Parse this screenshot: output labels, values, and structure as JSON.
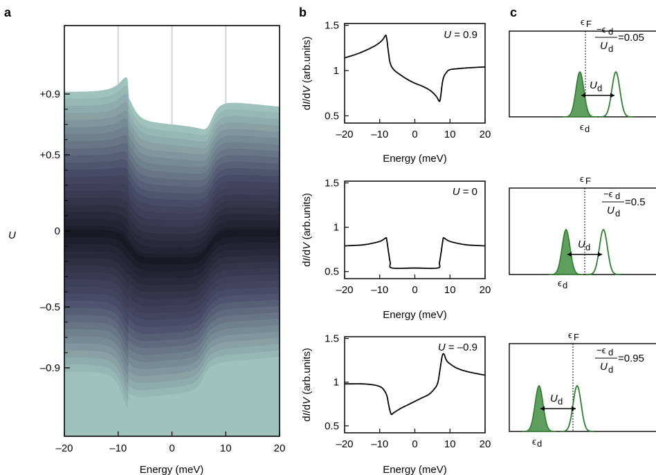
{
  "panel_labels": {
    "a": "a",
    "b": "b",
    "c": "c"
  },
  "chart_data": [
    {
      "id": "a",
      "type": "area",
      "xlabel": "Energy (meV)",
      "ylabel": "U",
      "xlim": [
        -20,
        20
      ],
      "xticks": [
        "–20",
        "–10",
        "0",
        "10",
        "20"
      ],
      "xtick_values": [
        -20,
        -10,
        0,
        10,
        20
      ],
      "yticks": [
        "+0.9",
        "+0.5",
        "0",
        "–0.5",
        "–0.9"
      ],
      "ytick_values": [
        0.9,
        0.5,
        0,
        -0.5,
        -0.9
      ],
      "ylim": [
        -1.35,
        1.35
      ],
      "vertical_gridlines": [
        -10,
        0,
        10
      ],
      "colormap": {
        "low": "#06060b",
        "mid": "#4a4d6a",
        "high": "#9fc2bd"
      },
      "description_of_series": "stacked dI/dV traces for U from -0.9 to 0.9"
    },
    {
      "id": "b1",
      "type": "line",
      "annotation": "U = 0.9",
      "ann_var": "U",
      "ann_val": " = 0.9",
      "xlabel": "Energy (meV)",
      "ylabel_italic_1": "I",
      "ylabel_italic_2": "V",
      "ylabel_d1": "d",
      "ylabel_slash": "/d",
      "ylabel_units": " (arb.units)",
      "xlim": [
        -20,
        20
      ],
      "ylim": [
        0.42,
        1.52
      ],
      "xticks": [
        "–20",
        "–10",
        "0",
        "10",
        "20"
      ],
      "yticks": [
        "0.5",
        "1",
        "1.5"
      ],
      "ytick_values": [
        0.5,
        1,
        1.5
      ],
      "x": [
        -20,
        -16,
        -12,
        -10,
        -9,
        -8.3,
        -8,
        -7.5,
        -7,
        -6,
        -4,
        -2,
        0,
        2,
        4,
        5,
        6,
        6.5,
        7,
        7.3,
        8,
        9,
        10,
        12,
        15,
        20
      ],
      "y": [
        1.14,
        1.19,
        1.26,
        1.31,
        1.35,
        1.39,
        1.35,
        1.2,
        1.08,
        1.01,
        0.95,
        0.9,
        0.86,
        0.83,
        0.79,
        0.76,
        0.72,
        0.69,
        0.66,
        0.7,
        0.9,
        0.98,
        1.01,
        1.02,
        1.03,
        1.04
      ]
    },
    {
      "id": "b2",
      "type": "line",
      "annotation": "U = 0",
      "ann_var": "U",
      "ann_val": " = 0",
      "xlabel": "Energy (meV)",
      "xlim": [
        -20,
        20
      ],
      "ylim": [
        0.42,
        1.52
      ],
      "xticks": [
        "–20",
        "–10",
        "0",
        "10",
        "20"
      ],
      "yticks": [
        "0.5",
        "1",
        "1.5"
      ],
      "ytick_values": [
        0.5,
        1,
        1.5
      ],
      "x": [
        -20,
        -15,
        -12,
        -10,
        -9,
        -8.2,
        -8,
        -7.5,
        -7,
        -6.5,
        0,
        6.5,
        7,
        7.5,
        8,
        8.2,
        9,
        10,
        12,
        15,
        20
      ],
      "y": [
        0.79,
        0.8,
        0.82,
        0.84,
        0.86,
        0.88,
        0.86,
        0.72,
        0.6,
        0.54,
        0.54,
        0.54,
        0.6,
        0.72,
        0.86,
        0.88,
        0.86,
        0.84,
        0.82,
        0.8,
        0.79
      ]
    },
    {
      "id": "b3",
      "type": "line",
      "annotation": "U = –0.9",
      "ann_var": "U",
      "ann_val": " = –0.9",
      "xlabel": "Energy (meV)",
      "xlim": [
        -20,
        20
      ],
      "ylim": [
        0.42,
        1.52
      ],
      "xticks": [
        "–20",
        "–10",
        "0",
        "10",
        "20"
      ],
      "yticks": [
        "0.5",
        "1",
        "1.5"
      ],
      "ytick_values": [
        0.5,
        1,
        1.5
      ],
      "x": [
        -20,
        -15,
        -12,
        -10,
        -9,
        -8,
        -7.5,
        -7,
        -6.6,
        -6,
        -4,
        -2,
        0,
        2,
        4,
        5.5,
        6.5,
        7.2,
        7.8,
        8.3,
        9,
        10,
        12,
        15,
        20
      ],
      "y": [
        0.98,
        0.98,
        0.97,
        0.95,
        0.92,
        0.85,
        0.75,
        0.66,
        0.63,
        0.65,
        0.7,
        0.74,
        0.78,
        0.82,
        0.86,
        0.92,
        0.99,
        1.15,
        1.3,
        1.32,
        1.25,
        1.21,
        1.16,
        1.12,
        1.08
      ]
    }
  ],
  "panel_c": [
    {
      "eF": "ϵ",
      "eF_sub": "F",
      "ratio_num": "−ϵ",
      "ratio_num_sub": "d",
      "ratio_den": "U",
      "ratio_den_sub": "d",
      "ratio_val": "=0.05",
      "Ud": "U",
      "Ud_sub": "d",
      "ed": "ϵ",
      "ed_sub": "d"
    },
    {
      "eF": "ϵ",
      "eF_sub": "F",
      "ratio_num": "−ϵ",
      "ratio_num_sub": "d",
      "ratio_den": "U",
      "ratio_den_sub": "d",
      "ratio_val": "=0.5",
      "Ud": "U",
      "Ud_sub": "d",
      "ed": "ϵ",
      "ed_sub": "d"
    },
    {
      "eF": "ϵ",
      "eF_sub": "F",
      "ratio_num": "−ϵ",
      "ratio_num_sub": "d",
      "ratio_den": "U",
      "ratio_den_sub": "d",
      "ratio_val": "=0.95",
      "Ud": "U",
      "Ud_sub": "d",
      "ed": "ϵ",
      "ed_sub": "d"
    }
  ],
  "colors": {
    "green_fill": "#5e9e5e",
    "green_line": "#2e7d2e",
    "axis": "#000000"
  }
}
